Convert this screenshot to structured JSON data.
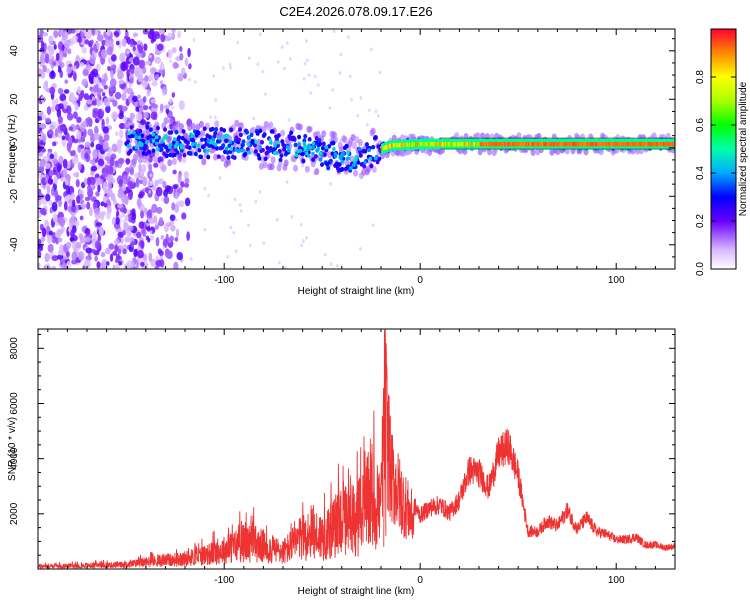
{
  "title": "C2E4.2026.078.09.17.E26",
  "chart_data": [
    {
      "type": "heatmap",
      "title": "C2E4.2026.078.09.17.E26",
      "xlabel": "Height of straight line (km)",
      "ylabel": "Frequency (Hz)",
      "xlim": [
        -195,
        130
      ],
      "ylim": [
        -50,
        49
      ],
      "xticks": [
        -100,
        0,
        100
      ],
      "yticks": [
        -40,
        -20,
        0,
        20,
        40
      ],
      "colorbar": {
        "label": "Normalized spectral amplitude",
        "range": [
          0,
          1
        ],
        "ticks": [
          "0.0",
          "0.2",
          "0.4",
          "0.6",
          "0.8"
        ]
      },
      "features": {
        "noise_region_x": [
          -195,
          -140
        ],
        "signal_band_x": [
          -150,
          130
        ],
        "drift": [
          {
            "x": -150,
            "y": 3
          },
          {
            "x": -100,
            "y": 2
          },
          {
            "x": -60,
            "y": 0
          },
          {
            "x": -35,
            "y": -5
          },
          {
            "x": -15,
            "y": 1
          },
          {
            "x": 0,
            "y": 1.5
          },
          {
            "x": 130,
            "y": 1.5
          }
        ],
        "peak_band_x": [
          -20,
          130
        ],
        "peak_amplitude": 0.95
      }
    },
    {
      "type": "line",
      "xlabel": "Height of straight line (km)",
      "ylabel": "SNR (10 * v/v)",
      "xlim": [
        -195,
        130
      ],
      "ylim": [
        0,
        8700
      ],
      "xticks": [
        -100,
        0,
        100
      ],
      "yticks": [
        2000,
        4000,
        6000,
        8000
      ],
      "color": "#ee3333",
      "series": [
        {
          "name": "SNR",
          "x": [
            -195,
            -170,
            -150,
            -140,
            -130,
            -120,
            -110,
            -100,
            -95,
            -90,
            -85,
            -80,
            -75,
            -70,
            -65,
            -60,
            -55,
            -50,
            -45,
            -40,
            -35,
            -30,
            -25,
            -20,
            -18,
            -15,
            -10,
            -5,
            0,
            5,
            10,
            15,
            20,
            25,
            30,
            35,
            40,
            45,
            50,
            55,
            60,
            65,
            70,
            75,
            80,
            85,
            90,
            95,
            100,
            105,
            110,
            115,
            120,
            125,
            130
          ],
          "y": [
            150,
            200,
            250,
            400,
            500,
            600,
            800,
            1100,
            1300,
            1500,
            1500,
            1300,
            1100,
            1000,
            1400,
            1800,
            2000,
            1900,
            2200,
            3000,
            2500,
            3200,
            4000,
            3500,
            8700,
            4500,
            3500,
            2600,
            2000,
            2300,
            2400,
            2100,
            2600,
            3700,
            3600,
            3000,
            4300,
            4600,
            3500,
            1400,
            1400,
            1800,
            1600,
            2200,
            1500,
            1900,
            1400,
            1300,
            1100,
            1100,
            1200,
            900,
            900,
            800,
            850
          ]
        }
      ]
    }
  ]
}
